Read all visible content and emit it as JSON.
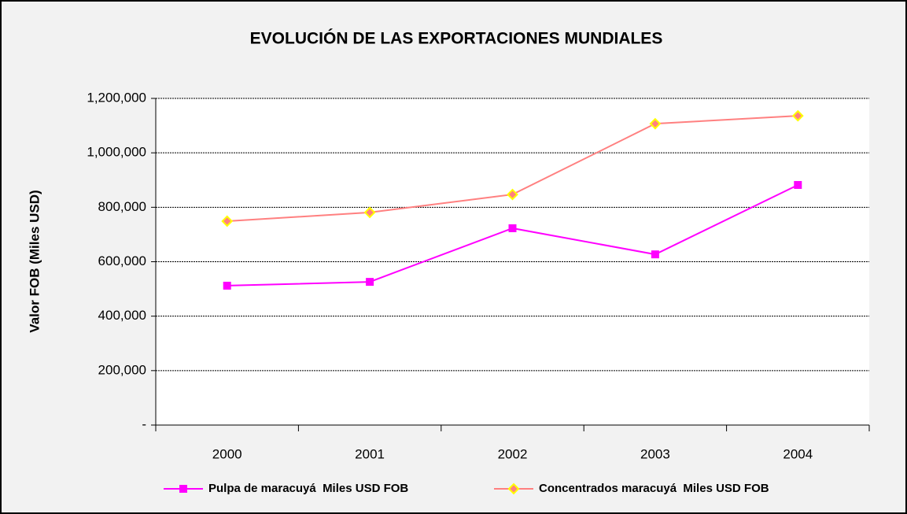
{
  "chart_data": {
    "type": "line",
    "title": "EVOLUCIÓN DE LAS EXPORTACIONES MUNDIALES",
    "y_label": "Valor FOB (Miles USD)",
    "categories": [
      "2000",
      "2001",
      "2002",
      "2003",
      "2004"
    ],
    "series": [
      {
        "name": "Pulpa de maracuyá  Miles USD FOB",
        "color": "#ff00ff",
        "marker": "square",
        "marker_color": "#ff00ff",
        "values": [
          512000,
          526000,
          723000,
          627000,
          882000
        ]
      },
      {
        "name": "Concentrados maracuyá  Miles USD FOB",
        "color": "#ff8080",
        "marker": "diamond",
        "marker_color": "#ffff00",
        "values": [
          749000,
          781000,
          847000,
          1107000,
          1136000
        ]
      }
    ],
    "ylim": [
      0,
      1200000
    ],
    "yticks": [
      {
        "value": 0,
        "label": "-"
      },
      {
        "value": 200000,
        "label": "200,000"
      },
      {
        "value": 400000,
        "label": "400,000"
      },
      {
        "value": 600000,
        "label": "600,000"
      },
      {
        "value": 800000,
        "label": "800,000"
      },
      {
        "value": 1000000,
        "label": "1,000,000"
      },
      {
        "value": 1200000,
        "label": "1,200,000"
      }
    ],
    "grid": true,
    "legend": "bottom"
  }
}
